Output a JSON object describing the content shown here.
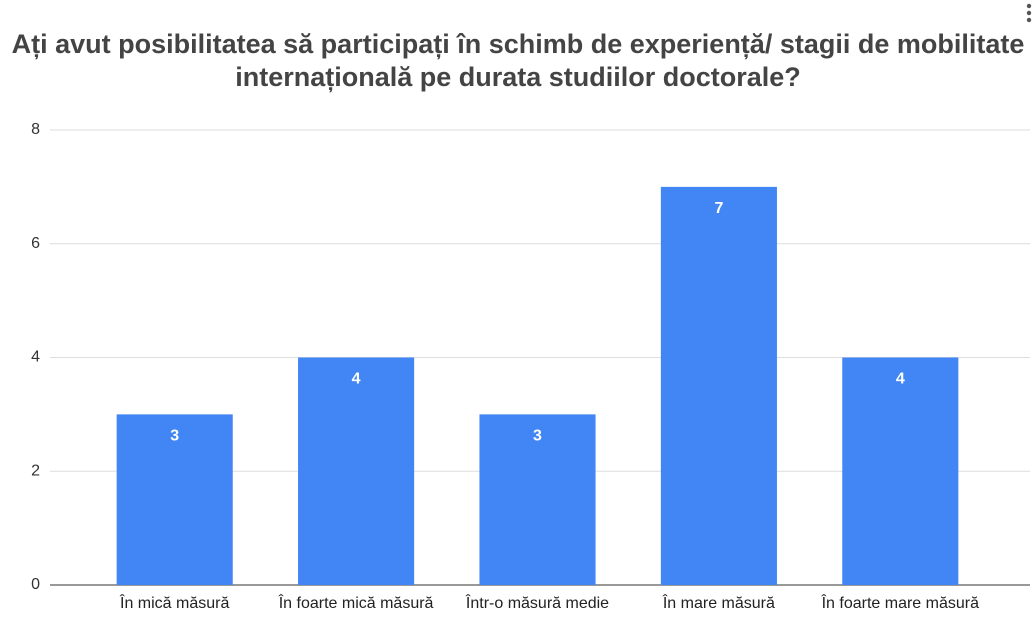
{
  "chart_data": {
    "type": "bar",
    "title": "Ați avut posibilitatea să participați în schimb de experiență/ stagii de mobilitate internațională  pe durata studiilor doctorale?",
    "categories": [
      "În mică măsură",
      "În foarte mică măsură",
      "Într-o măsură medie",
      "În mare măsură",
      "În foarte mare măsură"
    ],
    "values": [
      3,
      4,
      3,
      7,
      4
    ],
    "color": "#4285f4",
    "ylim": [
      0,
      8
    ],
    "yticks": [
      0,
      2,
      4,
      6,
      8
    ],
    "grid": true
  }
}
